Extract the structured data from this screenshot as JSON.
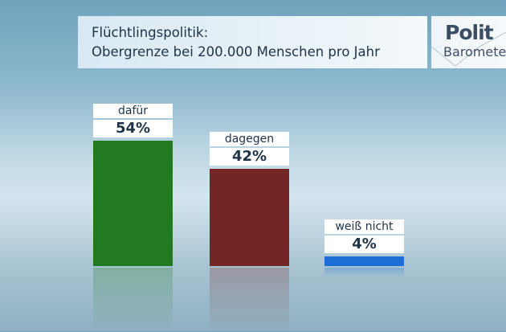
{
  "chart_data": {
    "type": "bar",
    "title": "Flüchtlingspolitik:",
    "subtitle": "Obergrenze bei 200.000 Menschen pro Jahr",
    "categories": [
      "dafür",
      "dagegen",
      "weiß nicht"
    ],
    "values": [
      54,
      42,
      4
    ],
    "value_labels": [
      "54%",
      "42%",
      "4%"
    ],
    "colors": [
      "#217a22",
      "#742627",
      "#1c6fd6"
    ],
    "unit": "%",
    "ylim": [
      0,
      60
    ],
    "grid": false
  },
  "logo": {
    "line1": "Polit",
    "line2": "Barometer"
  }
}
